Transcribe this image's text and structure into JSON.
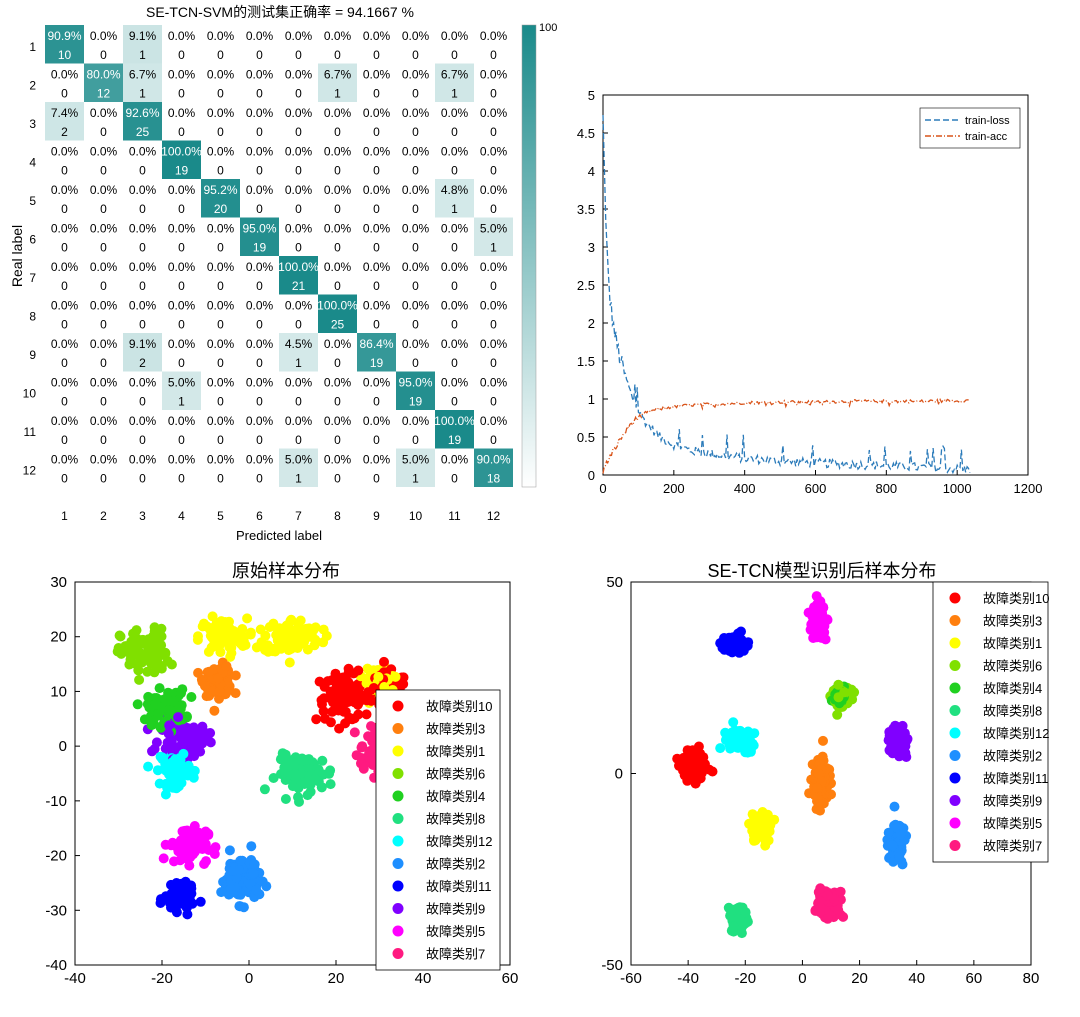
{
  "chart_data": [
    {
      "type": "heatmap",
      "title": "SE-TCN-SVM的测试集正确率 = 94.1667 %",
      "xlabel": "Predicted label",
      "ylabel": "Real label",
      "row_labels": [
        "1",
        "2",
        "3",
        "4",
        "5",
        "6",
        "7",
        "8",
        "9",
        "10",
        "11",
        "12"
      ],
      "col_labels": [
        "1",
        "2",
        "3",
        "4",
        "5",
        "6",
        "7",
        "8",
        "9",
        "10",
        "11",
        "12"
      ],
      "counts": [
        [
          10,
          0,
          1,
          0,
          0,
          0,
          0,
          0,
          0,
          0,
          0,
          0
        ],
        [
          0,
          12,
          1,
          0,
          0,
          0,
          0,
          1,
          0,
          0,
          1,
          0
        ],
        [
          2,
          0,
          25,
          0,
          0,
          0,
          0,
          0,
          0,
          0,
          0,
          0
        ],
        [
          0,
          0,
          0,
          19,
          0,
          0,
          0,
          0,
          0,
          0,
          0,
          0
        ],
        [
          0,
          0,
          0,
          0,
          20,
          0,
          0,
          0,
          0,
          0,
          1,
          0
        ],
        [
          0,
          0,
          0,
          0,
          0,
          19,
          0,
          0,
          0,
          0,
          0,
          1
        ],
        [
          0,
          0,
          0,
          0,
          0,
          0,
          21,
          0,
          0,
          0,
          0,
          0
        ],
        [
          0,
          0,
          0,
          0,
          0,
          0,
          0,
          25,
          0,
          0,
          0,
          0
        ],
        [
          0,
          0,
          2,
          0,
          0,
          0,
          1,
          0,
          19,
          0,
          0,
          0
        ],
        [
          0,
          0,
          0,
          1,
          0,
          0,
          0,
          0,
          0,
          19,
          0,
          0
        ],
        [
          0,
          0,
          0,
          0,
          0,
          0,
          0,
          0,
          0,
          0,
          19,
          0
        ],
        [
          0,
          0,
          0,
          0,
          0,
          0,
          1,
          0,
          0,
          1,
          0,
          18
        ]
      ],
      "percents": [
        [
          "90.9%",
          "0.0%",
          "9.1%",
          "0.0%",
          "0.0%",
          "0.0%",
          "0.0%",
          "0.0%",
          "0.0%",
          "0.0%",
          "0.0%",
          "0.0%"
        ],
        [
          "0.0%",
          "80.0%",
          "6.7%",
          "0.0%",
          "0.0%",
          "0.0%",
          "0.0%",
          "6.7%",
          "0.0%",
          "0.0%",
          "6.7%",
          "0.0%"
        ],
        [
          "7.4%",
          "0.0%",
          "92.6%",
          "0.0%",
          "0.0%",
          "0.0%",
          "0.0%",
          "0.0%",
          "0.0%",
          "0.0%",
          "0.0%",
          "0.0%"
        ],
        [
          "0.0%",
          "0.0%",
          "0.0%",
          "100.0%",
          "0.0%",
          "0.0%",
          "0.0%",
          "0.0%",
          "0.0%",
          "0.0%",
          "0.0%",
          "0.0%"
        ],
        [
          "0.0%",
          "0.0%",
          "0.0%",
          "0.0%",
          "95.2%",
          "0.0%",
          "0.0%",
          "0.0%",
          "0.0%",
          "0.0%",
          "4.8%",
          "0.0%"
        ],
        [
          "0.0%",
          "0.0%",
          "0.0%",
          "0.0%",
          "0.0%",
          "95.0%",
          "0.0%",
          "0.0%",
          "0.0%",
          "0.0%",
          "0.0%",
          "5.0%"
        ],
        [
          "0.0%",
          "0.0%",
          "0.0%",
          "0.0%",
          "0.0%",
          "0.0%",
          "100.0%",
          "0.0%",
          "0.0%",
          "0.0%",
          "0.0%",
          "0.0%"
        ],
        [
          "0.0%",
          "0.0%",
          "0.0%",
          "0.0%",
          "0.0%",
          "0.0%",
          "0.0%",
          "100.0%",
          "0.0%",
          "0.0%",
          "0.0%",
          "0.0%"
        ],
        [
          "0.0%",
          "0.0%",
          "9.1%",
          "0.0%",
          "0.0%",
          "0.0%",
          "4.5%",
          "0.0%",
          "86.4%",
          "0.0%",
          "0.0%",
          "0.0%"
        ],
        [
          "0.0%",
          "0.0%",
          "0.0%",
          "5.0%",
          "0.0%",
          "0.0%",
          "0.0%",
          "0.0%",
          "0.0%",
          "95.0%",
          "0.0%",
          "0.0%"
        ],
        [
          "0.0%",
          "0.0%",
          "0.0%",
          "0.0%",
          "0.0%",
          "0.0%",
          "0.0%",
          "0.0%",
          "0.0%",
          "0.0%",
          "100.0%",
          "0.0%"
        ],
        [
          "0.0%",
          "0.0%",
          "0.0%",
          "0.0%",
          "0.0%",
          "0.0%",
          "5.0%",
          "0.0%",
          "0.0%",
          "5.0%",
          "0.0%",
          "90.0%"
        ]
      ],
      "colorbar_label": "100",
      "colormap_high": "#1a8a8a",
      "colormap_low": "#ffffff"
    },
    {
      "type": "line",
      "xlim": [
        0,
        1200
      ],
      "ylim": [
        0,
        5
      ],
      "xticks": [
        "0",
        "200",
        "400",
        "600",
        "800",
        "1000",
        "1200"
      ],
      "yticks": [
        "0",
        "0.5",
        "1",
        "1.5",
        "2",
        "2.5",
        "3",
        "3.5",
        "4",
        "4.5",
        "5"
      ],
      "legend_position": "top-right",
      "grid": false,
      "series": [
        {
          "name": "train-loss",
          "color": "#2b7bba",
          "style": "dashed",
          "x": [
            0,
            5,
            10,
            15,
            20,
            30,
            40,
            50,
            60,
            70,
            80,
            90,
            100,
            120,
            140,
            160,
            180,
            200,
            250,
            300,
            350,
            400,
            500,
            600,
            700,
            800,
            900,
            1000,
            1040
          ],
          "y": [
            4.7,
            3.8,
            3.1,
            2.6,
            2.3,
            1.95,
            1.7,
            1.5,
            1.35,
            1.2,
            1.05,
            0.95,
            0.85,
            0.7,
            0.6,
            0.5,
            0.45,
            0.4,
            0.32,
            0.28,
            0.25,
            0.22,
            0.18,
            0.16,
            0.14,
            0.12,
            0.1,
            0.08,
            0.07
          ]
        },
        {
          "name": "train-acc",
          "color": "#d95319",
          "style": "dash-dot",
          "x": [
            0,
            10,
            20,
            40,
            60,
            80,
            100,
            120,
            150,
            200,
            250,
            300,
            400,
            500,
            600,
            700,
            800,
            900,
            1000,
            1040
          ],
          "y": [
            0.05,
            0.15,
            0.25,
            0.4,
            0.55,
            0.68,
            0.76,
            0.82,
            0.86,
            0.9,
            0.92,
            0.93,
            0.95,
            0.96,
            0.96,
            0.97,
            0.97,
            0.97,
            0.98,
            0.98
          ]
        }
      ]
    },
    {
      "type": "scatter",
      "title": "原始样本分布",
      "xlim": [
        -40,
        60
      ],
      "ylim": [
        -40,
        30
      ],
      "xticks": [
        "-40",
        "-20",
        "0",
        "20",
        "40",
        "60"
      ],
      "yticks": [
        "-40",
        "-30",
        "-20",
        "-10",
        "0",
        "10",
        "20",
        "30"
      ],
      "legend_position": "right",
      "series": [
        {
          "name": "故障类别10",
          "color": "#ff0000",
          "clusters": [
            [
              22,
              9,
              6,
              4
            ],
            [
              32,
              10,
              4,
              3
            ]
          ]
        },
        {
          "name": "故障类别3",
          "color": "#ff7f0e",
          "clusters": [
            [
              -7,
              12,
              3,
              2.5
            ]
          ]
        },
        {
          "name": "故障类别1",
          "color": "#ffff00",
          "clusters": [
            [
              -6,
              20,
              5,
              3
            ],
            [
              10,
              20,
              6,
              3
            ],
            [
              30,
              11,
              3,
              3
            ]
          ]
        },
        {
          "name": "故障类别6",
          "color": "#80e000",
          "clusters": [
            [
              -24,
              17,
              5,
              4
            ]
          ]
        },
        {
          "name": "故障类别4",
          "color": "#20d020",
          "clusters": [
            [
              -19,
              7,
              4,
              3
            ]
          ]
        },
        {
          "name": "故障类别8",
          "color": "#20e080",
          "clusters": [
            [
              13,
              -5,
              6,
              3
            ]
          ]
        },
        {
          "name": "故障类别12",
          "color": "#00ffff",
          "clusters": [
            [
              -17,
              -4,
              3,
              3
            ]
          ]
        },
        {
          "name": "故障类别2",
          "color": "#1e8fff",
          "clusters": [
            [
              -2,
              -24,
              4,
              4
            ]
          ]
        },
        {
          "name": "故障类别11",
          "color": "#0000ff",
          "clusters": [
            [
              -16,
              -28,
              3,
              2
            ]
          ]
        },
        {
          "name": "故障类别9",
          "color": "#8000ff",
          "clusters": [
            [
              -15,
              1,
              5,
              3
            ]
          ]
        },
        {
          "name": "故障类别5",
          "color": "#ff00ff",
          "clusters": [
            [
              -14,
              -18,
              4,
              3
            ]
          ]
        },
        {
          "name": "故障类别7",
          "color": "#ff1a80",
          "clusters": [
            [
              30,
              -1,
              4,
              4
            ]
          ]
        }
      ]
    },
    {
      "type": "scatter",
      "title": "SE-TCN模型识别后样本分布",
      "xlim": [
        -60,
        80
      ],
      "ylim": [
        -50,
        50
      ],
      "xticks": [
        "-60",
        "-40",
        "-20",
        "0",
        "20",
        "40",
        "60",
        "80"
      ],
      "yticks": [
        "-50",
        "0",
        "50"
      ],
      "legend_position": "top-right",
      "series": [
        {
          "name": "故障类别10",
          "color": "#ff0000",
          "clusters": [
            [
              -38,
              2,
              4,
              4
            ]
          ]
        },
        {
          "name": "故障类别3",
          "color": "#ff7f0e",
          "clusters": [
            [
              6,
              -2,
              2.5,
              5
            ]
          ]
        },
        {
          "name": "故障类别1",
          "color": "#ffff00",
          "clusters": [
            [
              -14,
              -14,
              3,
              3.5
            ]
          ]
        },
        {
          "name": "故障类别6",
          "color": "#80e000",
          "clusters": [
            [
              14,
              20,
              3,
              2.5
            ]
          ]
        },
        {
          "name": "故障类别4",
          "color": "#20d020",
          "clusters": [
            [
              13,
              20,
              2,
              1.5
            ]
          ]
        },
        {
          "name": "故障类别8",
          "color": "#20e080",
          "clusters": [
            [
              -23,
              -38,
              3,
              3
            ]
          ]
        },
        {
          "name": "故障类别12",
          "color": "#00ffff",
          "clusters": [
            [
              -22,
              9,
              4,
              2.5
            ]
          ]
        },
        {
          "name": "故障类别2",
          "color": "#1e8fff",
          "clusters": [
            [
              33,
              -18,
              2.5,
              4.5
            ]
          ]
        },
        {
          "name": "故障类别11",
          "color": "#0000ff",
          "clusters": [
            [
              -24,
              34,
              4,
              2
            ]
          ]
        },
        {
          "name": "故障类别9",
          "color": "#8000ff",
          "clusters": [
            [
              33,
              8,
              3,
              3
            ]
          ]
        },
        {
          "name": "故障类别5",
          "color": "#ff00ff",
          "clusters": [
            [
              6,
              40,
              2.5,
              4
            ]
          ]
        },
        {
          "name": "故障类别7",
          "color": "#ff1a80",
          "clusters": [
            [
              9,
              -34,
              3.5,
              3
            ]
          ]
        }
      ]
    }
  ]
}
